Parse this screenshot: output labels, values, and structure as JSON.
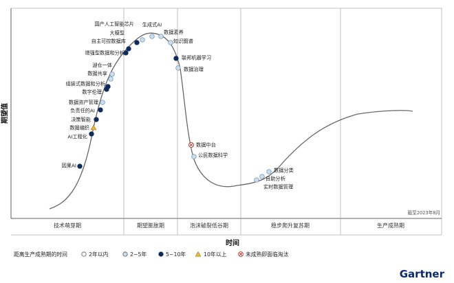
{
  "chart_data": {
    "type": "scatter",
    "title": "",
    "xlabel": "时间",
    "ylabel": "期望值",
    "grid": false,
    "phases": [
      "技术萌芽期",
      "期望膨胀期",
      "泡沫破裂低谷期",
      "稳步爬升复苏期",
      "生产成熟期"
    ],
    "as_of": "截至2023年8月",
    "brand": "Gartner",
    "legend": {
      "title": "距离生产成熟期的时间",
      "items": [
        {
          "key": "lt2",
          "label": "2年以内",
          "color": "#ffffff"
        },
        {
          "key": "2to5",
          "label": "2~5年",
          "color": "#c9dff0"
        },
        {
          "key": "5to10",
          "label": "5~10年",
          "color": "#0d2b5e"
        },
        {
          "key": "gt10",
          "label": "10年以上",
          "color": "#f2b632"
        },
        {
          "key": "obsolete",
          "label": "未成熟即面临淘汰",
          "color": "#ffffff"
        }
      ]
    },
    "points": [
      {
        "name": "因果AI",
        "category": "5to10"
      },
      {
        "name": "AI工程化",
        "category": "5to10"
      },
      {
        "name": "数据编织",
        "category": "gt10"
      },
      {
        "name": "决策智能",
        "category": "5to10"
      },
      {
        "name": "负责任的AI",
        "category": "5to10"
      },
      {
        "name": "数据资产管理",
        "category": "2to5"
      },
      {
        "name": "数字伦理",
        "category": "5to10"
      },
      {
        "name": "组装式数据和分析",
        "category": "5to10"
      },
      {
        "name": "数据共享",
        "category": "2to5"
      },
      {
        "name": "湖仓一体",
        "category": "2to5"
      },
      {
        "name": "增强型数据和分析",
        "category": "5to10"
      },
      {
        "name": "自主可控数据库",
        "category": "5to10"
      },
      {
        "name": "大模型",
        "category": "5to10"
      },
      {
        "name": "国产人工智能芯片",
        "category": "2to5"
      },
      {
        "name": "生成式AI",
        "category": "2to5"
      },
      {
        "name": "数据素养",
        "category": "2to5"
      },
      {
        "name": "知识图谱",
        "category": "2to5"
      },
      {
        "name": "联邦机器学习",
        "category": "5to10"
      },
      {
        "name": "数据治理",
        "category": "2to5"
      },
      {
        "name": "数据中台",
        "category": "obsolete"
      },
      {
        "name": "公民数据科学",
        "category": "2to5"
      },
      {
        "name": "数据分类",
        "category": "2to5"
      },
      {
        "name": "自助分析",
        "category": "2to5"
      },
      {
        "name": "实时数据管理",
        "category": "2to5"
      }
    ]
  }
}
